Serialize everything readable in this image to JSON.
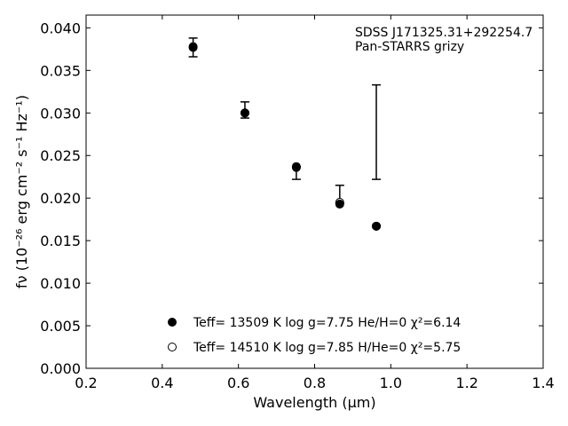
{
  "chart_data": {
    "type": "scatter",
    "title": "",
    "annotation": {
      "line1": "SDSS J171325.31+292254.7",
      "line2": "Pan-STARRS grizy"
    },
    "xlabel": "Wavelength (μm)",
    "ylabel": "fν (10⁻²⁶ erg cm⁻² s⁻¹ Hz⁻¹)",
    "xlim": [
      0.2,
      1.4
    ],
    "ylim": [
      0.0,
      0.0415
    ],
    "x_ticks": [
      0.2,
      0.4,
      0.6,
      0.8,
      1.0,
      1.2,
      1.4
    ],
    "x_tick_labels": [
      "0.2",
      "0.4",
      "0.6",
      "0.8",
      "1.0",
      "1.2",
      "1.4"
    ],
    "y_ticks": [
      0.0,
      0.005,
      0.01,
      0.015,
      0.02,
      0.025,
      0.03,
      0.035,
      0.04
    ],
    "y_tick_labels": [
      "0.000",
      "0.005",
      "0.010",
      "0.015",
      "0.020",
      "0.025",
      "0.030",
      "0.035",
      "0.040"
    ],
    "grid": false,
    "observed": {
      "x": [
        0.481,
        0.617,
        0.752,
        0.866,
        0.962
      ],
      "y_low": [
        0.0366,
        0.0294,
        0.0222,
        0.0194,
        0.0222
      ],
      "y_high": [
        0.0388,
        0.0313,
        0.0237,
        0.0215,
        0.0333
      ]
    },
    "series": [
      {
        "name": "Teff= 13509 K  log g=7.75  He/H=0  χ²=6.14",
        "marker": "filled-circle",
        "x": [
          0.481,
          0.617,
          0.752,
          0.866,
          0.962
        ],
        "y": [
          0.0377,
          0.03,
          0.0236,
          0.0193,
          0.0167
        ]
      },
      {
        "name": "Teff= 14510 K  log g=7.85  H/He=0  χ²=5.75",
        "marker": "open-circle",
        "x": [
          0.481,
          0.617,
          0.752,
          0.866,
          0.962
        ],
        "y": [
          0.0378,
          0.03,
          0.0237,
          0.0195,
          0.0167
        ]
      }
    ],
    "legend_placement": "bottom-center"
  }
}
